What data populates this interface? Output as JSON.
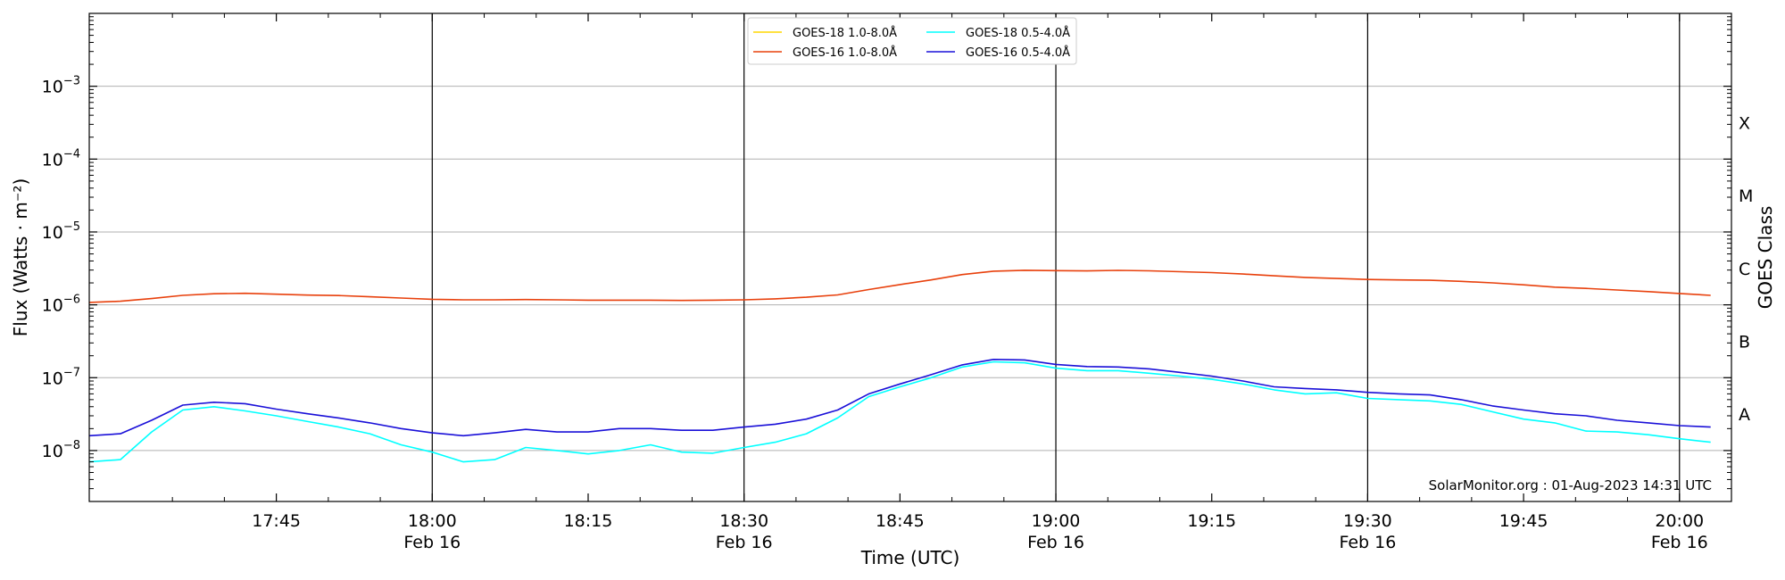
{
  "chart_data": {
    "type": "line",
    "title": "",
    "xlabel": "Time (UTC)",
    "ylabel": "Flux (Watts · m⁻²)",
    "y2label": "GOES Class",
    "yscale": "log",
    "ylim": [
      2e-09,
      0.01
    ],
    "xlim": [
      "17:27",
      "20:05"
    ],
    "grid": "horizontal",
    "legend_position": "top-center",
    "yticks": [
      {
        "value": 1e-08,
        "label_base": "10",
        "label_exp": "−8"
      },
      {
        "value": 1e-07,
        "label_base": "10",
        "label_exp": "−7"
      },
      {
        "value": 1e-06,
        "label_base": "10",
        "label_exp": "−6"
      },
      {
        "value": 1e-05,
        "label_base": "10",
        "label_exp": "−5"
      },
      {
        "value": 0.0001,
        "label_base": "10",
        "label_exp": "−4"
      },
      {
        "value": 0.001,
        "label_base": "10",
        "label_exp": "−3"
      }
    ],
    "xticks": [
      {
        "time": "17:45",
        "label": "17:45",
        "date": ""
      },
      {
        "time": "18:00",
        "label": "18:00",
        "date": "Feb 16"
      },
      {
        "time": "18:15",
        "label": "18:15",
        "date": ""
      },
      {
        "time": "18:30",
        "label": "18:30",
        "date": "Feb 16"
      },
      {
        "time": "18:45",
        "label": "18:45",
        "date": ""
      },
      {
        "time": "19:00",
        "label": "19:00",
        "date": "Feb 16"
      },
      {
        "time": "19:15",
        "label": "19:15",
        "date": ""
      },
      {
        "time": "19:30",
        "label": "19:30",
        "date": "Feb 16"
      },
      {
        "time": "19:45",
        "label": "19:45",
        "date": ""
      },
      {
        "time": "20:00",
        "label": "20:00",
        "date": "Feb 16"
      }
    ],
    "vlines": [
      "18:00",
      "18:30",
      "19:00",
      "19:30",
      "20:00"
    ],
    "goes_classes": [
      {
        "label": "A",
        "value": 3.16e-08
      },
      {
        "label": "B",
        "value": 3.16e-07
      },
      {
        "label": "C",
        "value": 3.16e-06
      },
      {
        "label": "M",
        "value": 3.16e-05
      },
      {
        "label": "X",
        "value": 0.000316
      }
    ],
    "series": [
      {
        "name": "GOES-18 1.0-8.0Å",
        "color": "#ffd700",
        "x": [],
        "values": []
      },
      {
        "name": "GOES-16 1.0-8.0Å",
        "color": "#e8400c",
        "x": [
          "17:27",
          "17:30",
          "17:33",
          "17:36",
          "17:39",
          "17:42",
          "17:45",
          "17:48",
          "17:51",
          "17:54",
          "17:57",
          "18:00",
          "18:03",
          "18:06",
          "18:09",
          "18:12",
          "18:15",
          "18:18",
          "18:21",
          "18:24",
          "18:27",
          "18:30",
          "18:33",
          "18:36",
          "18:39",
          "18:42",
          "18:45",
          "18:48",
          "18:51",
          "18:54",
          "18:57",
          "19:00",
          "19:03",
          "19:06",
          "19:09",
          "19:12",
          "19:15",
          "19:18",
          "19:21",
          "19:24",
          "19:27",
          "19:30",
          "19:33",
          "19:36",
          "19:39",
          "19:42",
          "19:45",
          "19:48",
          "19:51",
          "19:54",
          "19:57",
          "20:00",
          "20:03"
        ],
        "values": [
          1.08e-06,
          1.12e-06,
          1.22e-06,
          1.35e-06,
          1.42e-06,
          1.44e-06,
          1.4e-06,
          1.36e-06,
          1.34e-06,
          1.29e-06,
          1.24e-06,
          1.19e-06,
          1.17e-06,
          1.17e-06,
          1.18e-06,
          1.17e-06,
          1.16e-06,
          1.16e-06,
          1.16e-06,
          1.15e-06,
          1.16e-06,
          1.17e-06,
          1.21e-06,
          1.27e-06,
          1.37e-06,
          1.62e-06,
          1.9e-06,
          2.2e-06,
          2.6e-06,
          2.9e-06,
          2.98e-06,
          2.95e-06,
          2.92e-06,
          2.97e-06,
          2.93e-06,
          2.85e-06,
          2.77e-06,
          2.65e-06,
          2.5e-06,
          2.38e-06,
          2.3e-06,
          2.23e-06,
          2.2e-06,
          2.17e-06,
          2.1e-06,
          2e-06,
          1.88e-06,
          1.75e-06,
          1.68e-06,
          1.6e-06,
          1.52e-06,
          1.43e-06,
          1.35e-06
        ]
      },
      {
        "name": "GOES-18 0.5-4.0Å",
        "color": "#00ffff",
        "x": [
          "17:27",
          "17:30",
          "17:33",
          "17:36",
          "17:39",
          "17:42",
          "17:45",
          "17:48",
          "17:51",
          "17:54",
          "17:57",
          "18:00",
          "18:03",
          "18:06",
          "18:09",
          "18:12",
          "18:15",
          "18:18",
          "18:21",
          "18:24",
          "18:27",
          "18:30",
          "18:33",
          "18:36",
          "18:39",
          "18:42",
          "18:45",
          "18:48",
          "18:51",
          "18:54",
          "18:57",
          "19:00",
          "19:03",
          "19:06",
          "19:09",
          "19:12",
          "19:15",
          "19:18",
          "19:21",
          "19:24",
          "19:27",
          "19:30",
          "19:33",
          "19:36",
          "19:39",
          "19:42",
          "19:45",
          "19:48",
          "19:51",
          "19:54",
          "19:57",
          "20:00",
          "20:03"
        ],
        "values": [
          7e-09,
          7.5e-09,
          1.8e-08,
          3.6e-08,
          4e-08,
          3.5e-08,
          3e-08,
          2.5e-08,
          2.1e-08,
          1.7e-08,
          1.2e-08,
          9.5e-09,
          7e-09,
          7.5e-09,
          1.1e-08,
          1e-08,
          9e-09,
          1e-08,
          1.2e-08,
          9.5e-09,
          9.2e-09,
          1.1e-08,
          1.3e-08,
          1.7e-08,
          2.8e-08,
          5.5e-08,
          7.5e-08,
          1e-07,
          1.4e-07,
          1.65e-07,
          1.6e-07,
          1.35e-07,
          1.25e-07,
          1.25e-07,
          1.15e-07,
          1.05e-07,
          9.5e-08,
          8.2e-08,
          6.8e-08,
          6e-08,
          6.2e-08,
          5.2e-08,
          5e-08,
          4.8e-08,
          4.3e-08,
          3.4e-08,
          2.7e-08,
          2.4e-08,
          1.85e-08,
          1.8e-08,
          1.65e-08,
          1.45e-08,
          1.3e-08
        ]
      },
      {
        "name": "GOES-16 0.5-4.0Å",
        "color": "#1a10d8",
        "x": [
          "17:27",
          "17:30",
          "17:33",
          "17:36",
          "17:39",
          "17:42",
          "17:45",
          "17:48",
          "17:51",
          "17:54",
          "17:57",
          "18:00",
          "18:03",
          "18:06",
          "18:09",
          "18:12",
          "18:15",
          "18:18",
          "18:21",
          "18:24",
          "18:27",
          "18:30",
          "18:33",
          "18:36",
          "18:39",
          "18:42",
          "18:45",
          "18:48",
          "18:51",
          "18:54",
          "18:57",
          "19:00",
          "19:03",
          "19:06",
          "19:09",
          "19:12",
          "19:15",
          "19:18",
          "19:21",
          "19:24",
          "19:27",
          "19:30",
          "19:33",
          "19:36",
          "19:39",
          "19:42",
          "19:45",
          "19:48",
          "19:51",
          "19:54",
          "19:57",
          "20:00",
          "20:03"
        ],
        "values": [
          1.6e-08,
          1.7e-08,
          2.6e-08,
          4.2e-08,
          4.6e-08,
          4.4e-08,
          3.7e-08,
          3.2e-08,
          2.8e-08,
          2.4e-08,
          2e-08,
          1.75e-08,
          1.6e-08,
          1.75e-08,
          1.95e-08,
          1.8e-08,
          1.8e-08,
          2e-08,
          2e-08,
          1.9e-08,
          1.9e-08,
          2.1e-08,
          2.3e-08,
          2.7e-08,
          3.6e-08,
          6e-08,
          8.2e-08,
          1.1e-07,
          1.5e-07,
          1.78e-07,
          1.75e-07,
          1.52e-07,
          1.42e-07,
          1.4e-07,
          1.32e-07,
          1.18e-07,
          1.05e-07,
          9e-08,
          7.5e-08,
          7.1e-08,
          6.8e-08,
          6.3e-08,
          6e-08,
          5.8e-08,
          5e-08,
          4.1e-08,
          3.6e-08,
          3.2e-08,
          3e-08,
          2.6e-08,
          2.4e-08,
          2.2e-08,
          2.1e-08
        ]
      }
    ],
    "annotation": "SolarMonitor.org : 01-Aug-2023 14:31 UTC"
  }
}
